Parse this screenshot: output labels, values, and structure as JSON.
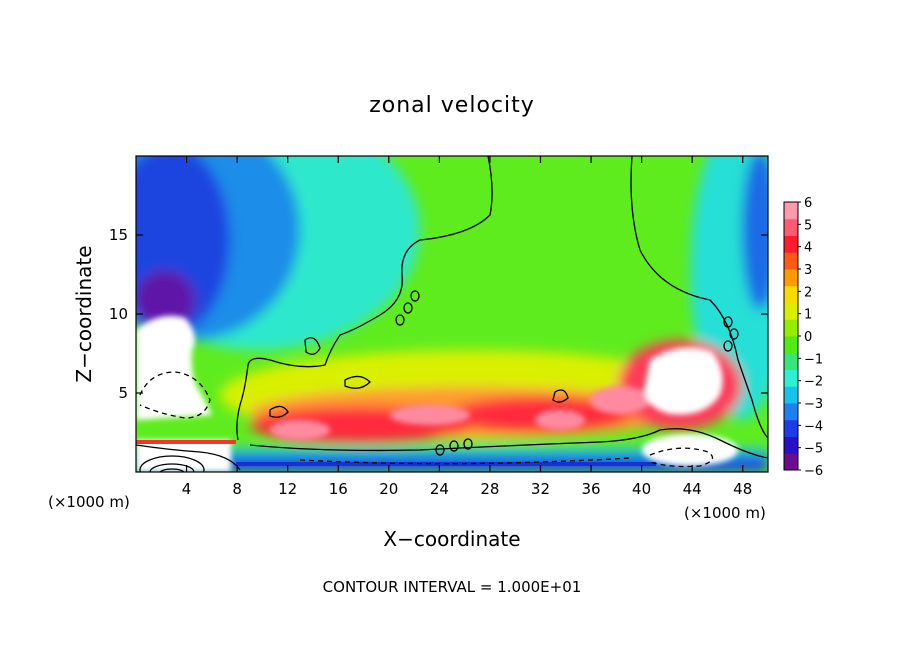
{
  "chart_data": {
    "type": "heatmap",
    "title": "zonal velocity",
    "xlabel": "X−coordinate",
    "ylabel": "Z−coordinate",
    "x_unit_left": "(×1000 m)",
    "x_unit_right": "(×1000 m)",
    "contour_interval_label": "CONTOUR INTERVAL = 1.000E+01",
    "xlim": [
      0,
      50
    ],
    "ylim": [
      0,
      20
    ],
    "x_ticks": [
      4,
      8,
      12,
      16,
      20,
      24,
      28,
      32,
      36,
      40,
      44,
      48
    ],
    "y_ticks": [
      5,
      10,
      15
    ],
    "colorbar": {
      "range": [
        -6,
        6
      ],
      "labels": [
        "6",
        "5",
        "4",
        "3",
        "2",
        "1",
        "0",
        "−1",
        "−2",
        "−3",
        "−4",
        "−5",
        "−6"
      ],
      "colors": [
        "#6a0d91",
        "#2a10c8",
        "#1c3ce8",
        "#1f7ff0",
        "#16c3ec",
        "#2cf0d2",
        "#33e878",
        "#52ea12",
        "#95ee00",
        "#d8f000",
        "#f6dd00",
        "#ff9a00",
        "#ff5a14",
        "#ff1a2c",
        "#ff5a72",
        "#ff98a8"
      ]
    },
    "features": [
      {
        "name": "strong westward jet (white, below -6)",
        "x": 3.5,
        "z": 7.5,
        "value": -7
      },
      {
        "name": "upper-left easterly region (blue)",
        "x": 5,
        "z": 14,
        "value": -4.5
      },
      {
        "name": "low-level westerly band (red)",
        "x": 24,
        "z": 3.8,
        "value": 5
      },
      {
        "name": "strong westerly core (white, above 6)",
        "x": 43,
        "z": 6.5,
        "value": 7
      },
      {
        "name": "mid-domain westerlies (green)",
        "x": 32,
        "z": 14,
        "value": 1
      },
      {
        "name": "near-surface easterly core (white)",
        "x": 44,
        "z": 1.5,
        "value": -7
      }
    ]
  }
}
